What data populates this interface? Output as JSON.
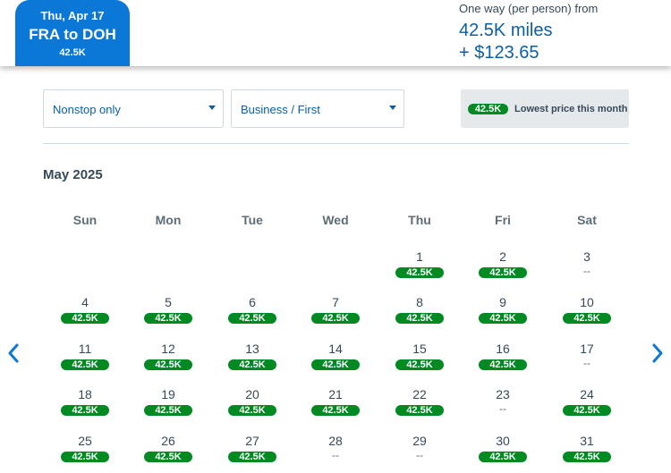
{
  "header": {
    "selected_date": "Thu, Apr 17",
    "route": "FRA to DOH",
    "selected_miles": "42.5K",
    "price_caption": "One way (per person) from",
    "price_miles": "42.5K miles",
    "price_taxes": "+ $123.65"
  },
  "filters": {
    "stops": "Nonstop only",
    "cabin": "Business / First"
  },
  "legend": {
    "badge": "42.5K",
    "text": "Lowest price this month"
  },
  "calendar": {
    "month": "May 2025",
    "weekdays": [
      "Sun",
      "Mon",
      "Tue",
      "Wed",
      "Thu",
      "Fri",
      "Sat"
    ],
    "weeks": [
      [
        null,
        null,
        null,
        null,
        {
          "day": "1",
          "price": "42.5K"
        },
        {
          "day": "2",
          "price": "42.5K"
        },
        {
          "day": "3",
          "price": "--"
        }
      ],
      [
        {
          "day": "4",
          "price": "42.5K"
        },
        {
          "day": "5",
          "price": "42.5K"
        },
        {
          "day": "6",
          "price": "42.5K"
        },
        {
          "day": "7",
          "price": "42.5K"
        },
        {
          "day": "8",
          "price": "42.5K"
        },
        {
          "day": "9",
          "price": "42.5K"
        },
        {
          "day": "10",
          "price": "42.5K"
        }
      ],
      [
        {
          "day": "11",
          "price": "42.5K"
        },
        {
          "day": "12",
          "price": "42.5K"
        },
        {
          "day": "13",
          "price": "42.5K"
        },
        {
          "day": "14",
          "price": "42.5K"
        },
        {
          "day": "15",
          "price": "42.5K"
        },
        {
          "day": "16",
          "price": "42.5K"
        },
        {
          "day": "17",
          "price": "--"
        }
      ],
      [
        {
          "day": "18",
          "price": "42.5K"
        },
        {
          "day": "19",
          "price": "42.5K"
        },
        {
          "day": "20",
          "price": "42.5K"
        },
        {
          "day": "21",
          "price": "42.5K"
        },
        {
          "day": "22",
          "price": "42.5K"
        },
        {
          "day": "23",
          "price": "--"
        },
        {
          "day": "24",
          "price": "42.5K"
        }
      ],
      [
        {
          "day": "25",
          "price": "42.5K"
        },
        {
          "day": "26",
          "price": "42.5K"
        },
        {
          "day": "27",
          "price": "42.5K"
        },
        {
          "day": "28",
          "price": "--"
        },
        {
          "day": "29",
          "price": "--"
        },
        {
          "day": "30",
          "price": "42.5K"
        },
        {
          "day": "31",
          "price": "42.5K"
        }
      ]
    ]
  },
  "nav": {
    "prev_icon": "chevron-left-icon",
    "next_icon": "chevron-right-icon"
  },
  "colors": {
    "brand_blue": "#0b78d7",
    "link_blue": "#0b5fa5",
    "lowest_price_green": "#008a21"
  }
}
